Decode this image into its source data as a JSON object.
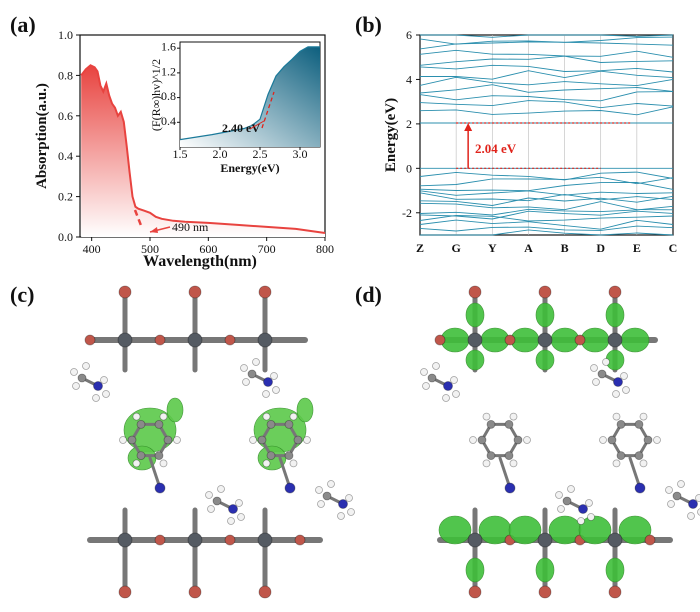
{
  "panels": {
    "a": {
      "label": "(a)"
    },
    "b": {
      "label": "(b)"
    },
    "c": {
      "label": "(c)"
    },
    "d": {
      "label": "(d)"
    }
  },
  "chart_data": [
    {
      "panel": "a",
      "type": "area",
      "xlabel": "Wavelength(nm)",
      "ylabel": "Absorption(a.u.)",
      "xlim": [
        380,
        800
      ],
      "ylim": [
        0.0,
        1.0
      ],
      "xticks": [
        400,
        500,
        600,
        700,
        800
      ],
      "yticks": [
        0.0,
        0.2,
        0.4,
        0.6,
        0.8,
        1.0
      ],
      "x": [
        382,
        390,
        398,
        405,
        410,
        415,
        420,
        425,
        430,
        435,
        440,
        445,
        450,
        455,
        460,
        465,
        470,
        475,
        480,
        490,
        500,
        510,
        520,
        530,
        540,
        560,
        600,
        650,
        700,
        750,
        800
      ],
      "values": [
        0.8,
        0.83,
        0.85,
        0.84,
        0.82,
        0.75,
        0.72,
        0.76,
        0.7,
        0.66,
        0.64,
        0.6,
        0.62,
        0.57,
        0.45,
        0.32,
        0.2,
        0.15,
        0.14,
        0.13,
        0.12,
        0.1,
        0.09,
        0.085,
        0.08,
        0.075,
        0.07,
        0.06,
        0.05,
        0.04,
        0.02
      ],
      "annotation": "490 nm",
      "color": "#e8433f",
      "inset": {
        "type": "area",
        "ylabel": "(F(R∞)hv)^1/2",
        "xlabel": "Energy(eV)",
        "xlim": [
          1.5,
          3.25
        ],
        "ylim": [
          0.0,
          1.7
        ],
        "xticks": [
          1.5,
          2.0,
          2.5,
          3.0
        ],
        "xtick_labels": [
          "1.5",
          "2.0",
          "2.5",
          "3.0"
        ],
        "yticks": [
          0.4,
          0.8,
          1.2,
          1.6
        ],
        "ytick_labels": [
          "0.4",
          "0.8",
          "1.2",
          "1.6"
        ],
        "x": [
          1.5,
          1.7,
          1.9,
          2.1,
          2.3,
          2.4,
          2.5,
          2.6,
          2.7,
          2.8,
          2.9,
          3.0,
          3.1,
          3.25
        ],
        "values": [
          0.12,
          0.16,
          0.2,
          0.25,
          0.3,
          0.35,
          0.45,
          0.85,
          1.15,
          1.3,
          1.42,
          1.55,
          1.62,
          1.62
        ],
        "annotation": "2.40 eV",
        "color": "#1b7a9a"
      }
    },
    {
      "panel": "b",
      "type": "line",
      "ylabel": "Energy(eV)",
      "ylim": [
        -3,
        6
      ],
      "yticks": [
        -2,
        0,
        2,
        4,
        6
      ],
      "categories": [
        "Z",
        "G",
        "Y",
        "A",
        "B",
        "D",
        "E",
        "C"
      ],
      "annotation": "2.04 eV",
      "conduction_band_min": 2.04,
      "valence_band_max": 0.0,
      "line_color": "#2b8fae",
      "arrow_color": "#e0231b"
    }
  ],
  "structures": {
    "c": {
      "atom_colors": {
        "metal": "#555b63",
        "halide": "#c0564a",
        "nitrogen": "#2a2fb0",
        "carbon": "#8a8a8a",
        "hydrogen": "#f2f2f2",
        "orbital": "#5cc94a"
      }
    },
    "d": {
      "atom_colors": {
        "metal": "#555b63",
        "halide": "#c0564a",
        "nitrogen": "#2a2fb0",
        "carbon": "#8a8a8a",
        "hydrogen": "#f2f2f2",
        "orbital": "#3fbf3a"
      }
    }
  }
}
